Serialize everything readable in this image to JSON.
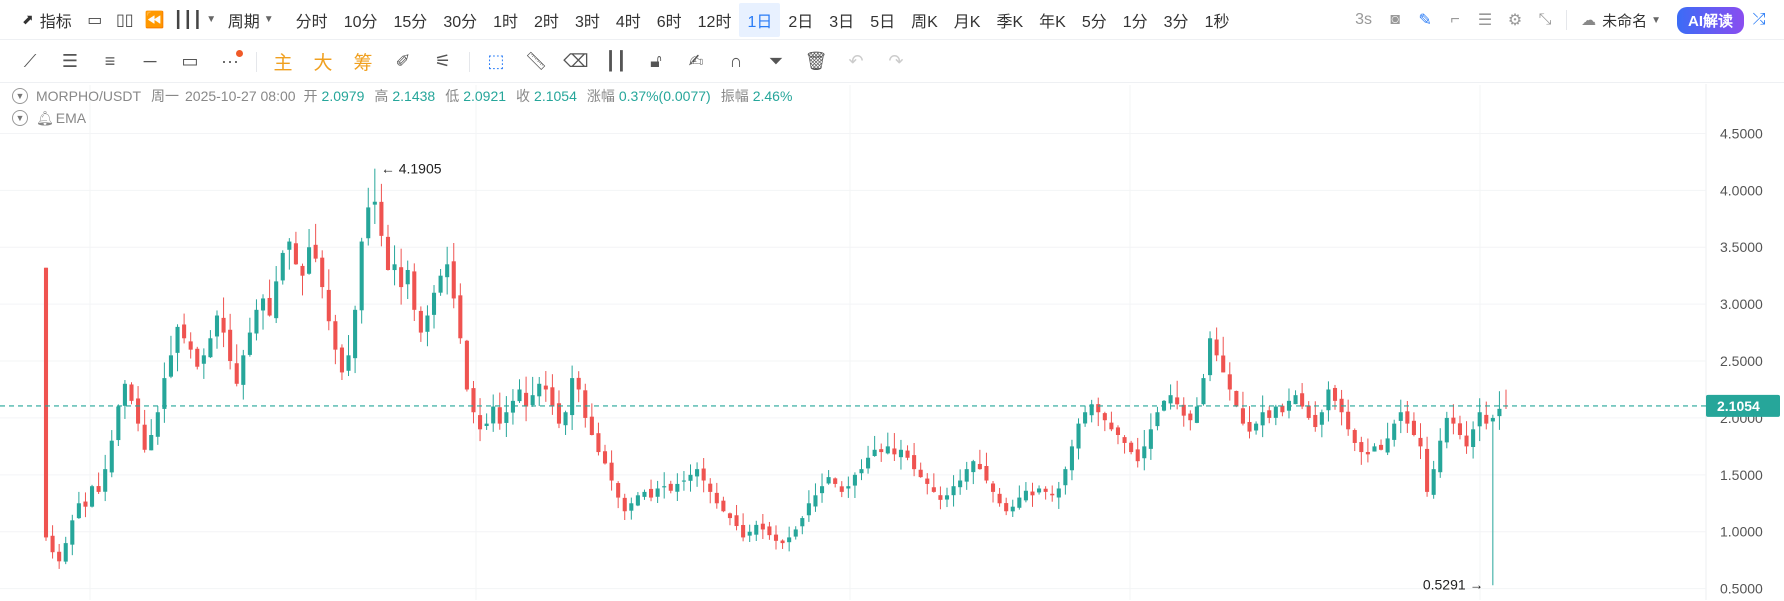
{
  "toolbar": {
    "indicators_label": "指标",
    "period_label": "周期",
    "intervals": [
      "分时",
      "10分",
      "15分",
      "30分",
      "1时",
      "2时",
      "3时",
      "4时",
      "6时",
      "12时",
      "1日",
      "2日",
      "3日",
      "5日",
      "周K",
      "月K",
      "季K",
      "年K",
      "5分",
      "1分",
      "3分",
      "1秒"
    ],
    "active_interval": "1日",
    "refresh_label": "3s",
    "layout_name": "未命名",
    "ai_label": "AI解读"
  },
  "drawbar": {
    "main_label": "主",
    "big_label": "大",
    "chips_label": "筹"
  },
  "info": {
    "symbol": "MORPHO/USDT",
    "weekday": "周一",
    "datetime": "2025-10-27 08:00",
    "open_label": "开",
    "open": "2.0979",
    "high_label": "高",
    "high": "2.1438",
    "low_label": "低",
    "low": "2.0921",
    "close_label": "收",
    "close": "2.1054",
    "change_label": "涨幅",
    "change": "0.37%(0.0077)",
    "amplitude_label": "振幅",
    "amplitude": "2.46%"
  },
  "ema_label": "EMA",
  "colors": {
    "up": "#26a69a",
    "down": "#ef5350",
    "accent": "#2a7cf6",
    "last_price": "#26a69a"
  },
  "chart_data": {
    "type": "candlestick",
    "y_ticks": [
      "4.5000",
      "4.0000",
      "3.5000",
      "3.0000",
      "2.5000",
      "2.0000",
      "1.5000",
      "1.0000",
      "0.5000"
    ],
    "ylim": [
      0.4,
      4.75
    ],
    "last_price": "2.1054",
    "max_label": "4.1905",
    "min_label": "0.5291",
    "close_series": [
      0.95,
      0.82,
      0.74,
      0.9,
      1.1,
      1.25,
      1.22,
      1.4,
      1.35,
      1.55,
      1.8,
      2.1,
      2.3,
      2.15,
      1.95,
      1.72,
      1.85,
      2.05,
      2.35,
      2.55,
      2.8,
      2.7,
      2.6,
      2.45,
      2.55,
      2.7,
      2.9,
      2.75,
      2.5,
      2.3,
      2.55,
      2.75,
      2.95,
      3.05,
      2.9,
      3.2,
      3.45,
      3.55,
      3.35,
      3.25,
      3.5,
      3.4,
      3.15,
      2.85,
      2.6,
      2.4,
      2.55,
      2.95,
      3.55,
      3.85,
      3.9,
      3.6,
      3.3,
      3.35,
      3.15,
      3.3,
      2.95,
      2.75,
      2.9,
      3.1,
      3.25,
      3.35,
      3.05,
      2.7,
      2.25,
      2.05,
      1.9,
      1.95,
      2.1,
      1.95,
      2.05,
      2.15,
      2.25,
      2.1,
      2.2,
      2.3,
      2.25,
      2.1,
      1.95,
      2.05,
      2.35,
      2.25,
      2.0,
      1.85,
      1.7,
      1.6,
      1.45,
      1.3,
      1.18,
      1.25,
      1.32,
      1.35,
      1.3,
      1.38,
      1.4,
      1.36,
      1.42,
      1.45,
      1.5,
      1.55,
      1.45,
      1.35,
      1.25,
      1.18,
      1.12,
      1.05,
      0.95,
      1.0,
      1.06,
      1.02,
      0.97,
      0.92,
      0.9,
      0.95,
      1.02,
      1.12,
      1.25,
      1.32,
      1.4,
      1.48,
      1.42,
      1.35,
      1.4,
      1.5,
      1.55,
      1.65,
      1.72,
      1.7,
      1.75,
      1.68,
      1.72,
      1.65,
      1.55,
      1.48,
      1.42,
      1.35,
      1.28,
      1.32,
      1.4,
      1.45,
      1.55,
      1.62,
      1.55,
      1.45,
      1.35,
      1.25,
      1.18,
      1.22,
      1.3,
      1.36,
      1.32,
      1.38,
      1.35,
      1.32,
      1.38,
      1.55,
      1.75,
      1.95,
      2.05,
      2.12,
      2.05,
      1.98,
      1.9,
      1.85,
      1.78,
      1.7,
      1.62,
      1.75,
      1.9,
      2.05,
      2.15,
      2.2,
      2.12,
      2.02,
      1.98,
      2.1,
      2.35,
      2.7,
      2.55,
      2.4,
      2.25,
      2.1,
      1.95,
      1.88,
      1.95,
      2.05,
      2.0,
      2.1,
      2.05,
      2.15,
      2.2,
      2.1,
      2.0,
      1.92,
      2.05,
      2.25,
      2.15,
      2.05,
      1.9,
      1.78,
      1.7,
      1.68,
      1.75,
      1.72,
      1.82,
      1.95,
      2.05,
      1.95,
      1.85,
      1.75,
      1.35,
      1.55,
      1.8,
      2.0,
      1.95,
      1.85,
      1.75,
      1.9,
      2.05,
      1.95,
      2.0,
      2.08,
      2.1
    ]
  }
}
